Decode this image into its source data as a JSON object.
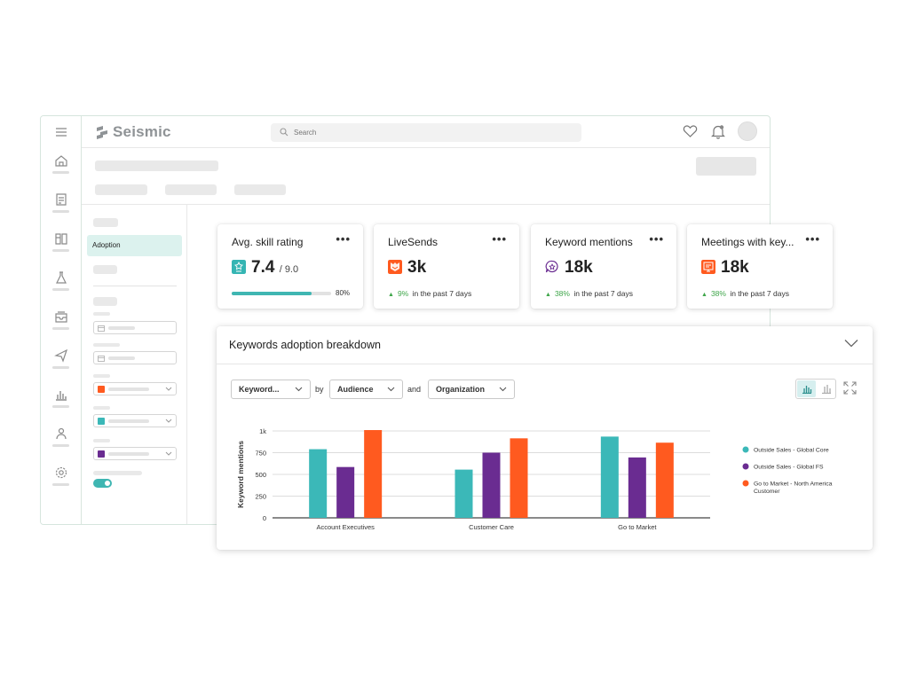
{
  "app": {
    "logo_text": "Seismic"
  },
  "search": {
    "placeholder": "Search"
  },
  "sidebar": {
    "active_item": "Adoption"
  },
  "side_filters": [
    {
      "swatch": ""
    },
    {
      "swatch": ""
    },
    {
      "swatch": "#ff5a1f"
    },
    {
      "swatch": "#3bb8b8"
    },
    {
      "swatch": "#6a2c91"
    }
  ],
  "kpis": [
    {
      "title": "Avg. skill rating",
      "value": "7.4",
      "value_suffix": "/ 9.0",
      "icon": "skill-icon",
      "icon_color": "#35b5b3",
      "progress": 0.8,
      "progress_label": "80%"
    },
    {
      "title": "LiveSends",
      "value": "3k",
      "icon": "livesend-icon",
      "icon_color": "#ff5a1f",
      "trend_pct": "9%",
      "trend_text": "in the past 7 days"
    },
    {
      "title": "Keyword mentions",
      "value": "18k",
      "icon": "keyword-icon",
      "icon_color": "#6a2c91",
      "trend_pct": "38%",
      "trend_text": "in the past 7 days"
    },
    {
      "title": "Meetings with key...",
      "value": "18k",
      "icon": "meeting-icon",
      "icon_color": "#ff5a1f",
      "trend_pct": "38%",
      "trend_text": "in the past 7 days"
    }
  ],
  "chart_panel": {
    "title": "Keywords adoption breakdown",
    "filters": {
      "metric": "Keyword...",
      "by_label": "by",
      "dimension": "Audience",
      "and_label": "and",
      "group": "Organization"
    }
  },
  "chart_data": {
    "type": "bar",
    "categories": [
      "Account Executives",
      "Customer Care",
      "Go to Market"
    ],
    "series": [
      {
        "name": "Outside Sales - Global Core",
        "color": "#3bb8b8",
        "values": [
          790,
          555,
          935
        ]
      },
      {
        "name": "Outside Sales - Global FS",
        "color": "#6a2c91",
        "values": [
          585,
          750,
          695
        ]
      },
      {
        "name": "Go to Market - North America Customer",
        "color": "#ff5a1f",
        "values": [
          1010,
          915,
          865
        ]
      }
    ],
    "ylabel": "Keyword mentions",
    "yticks": [
      "0",
      "250",
      "500",
      "750",
      "1k"
    ],
    "ytick_values": [
      0,
      250,
      500,
      750,
      1000
    ],
    "ylim": [
      0,
      1000
    ],
    "grid": true,
    "legend_position": "right"
  }
}
